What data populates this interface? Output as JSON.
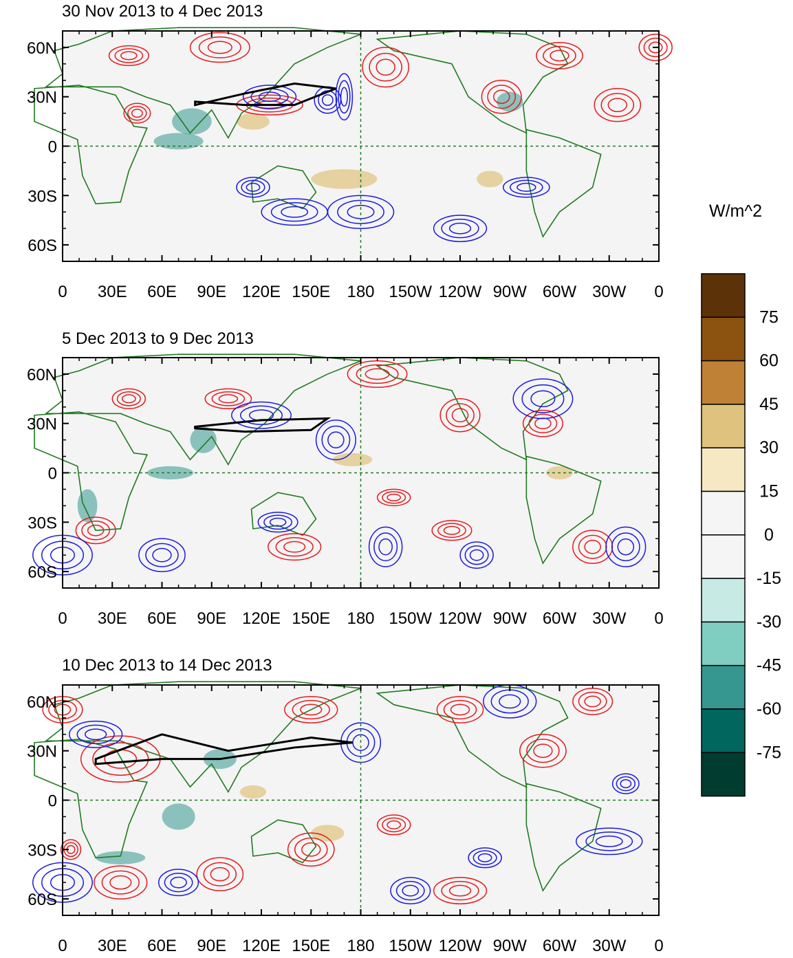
{
  "figure": {
    "units_label": "W/m^2",
    "colors": {
      "frame": "#000000",
      "coastline": "#1f7a1f",
      "equator_line": "#1f7a1f",
      "positive_contour": "#e8191c",
      "negative_contour": "#1a1ae6",
      "jet_contour": "#000000",
      "ocean_background": "#f4f4f4"
    }
  },
  "panels": [
    {
      "title": "30 Nov 2013 to 4 Dec 2013",
      "x_ticks": [
        "0",
        "30E",
        "60E",
        "90E",
        "120E",
        "150E",
        "180",
        "150W",
        "120W",
        "90W",
        "60W",
        "30W",
        "0"
      ],
      "y_ticks": [
        "60N",
        "30N",
        "0",
        "30S",
        "60S"
      ]
    },
    {
      "title": "5 Dec 2013 to 9 Dec 2013",
      "x_ticks": [
        "0",
        "30E",
        "60E",
        "90E",
        "120E",
        "150E",
        "180",
        "150W",
        "120W",
        "90W",
        "60W",
        "30W",
        "0"
      ],
      "y_ticks": [
        "60N",
        "30N",
        "0",
        "30S",
        "60S"
      ]
    },
    {
      "title": "10 Dec 2013 to 14 Dec 2013",
      "x_ticks": [
        "0",
        "30E",
        "60E",
        "90E",
        "120E",
        "150E",
        "180",
        "150W",
        "120W",
        "90W",
        "60W",
        "30W",
        "0"
      ],
      "y_ticks": [
        "60N",
        "30N",
        "0",
        "30S",
        "60S"
      ]
    }
  ],
  "colorbar": {
    "labels": [
      "75",
      "60",
      "45",
      "30",
      "15",
      "0",
      "-15",
      "-30",
      "-45",
      "-60",
      "-75"
    ],
    "colors": [
      "#5c3209",
      "#8c520f",
      "#bf8135",
      "#dfc27d",
      "#f6e8c3",
      "#f5f5f5",
      "#f5f5f5",
      "#c7eae5",
      "#80cdc1",
      "#35978f",
      "#01665e",
      "#003c30"
    ]
  }
}
